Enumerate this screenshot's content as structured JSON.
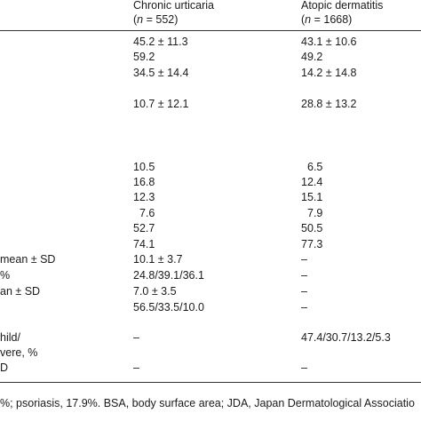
{
  "table": {
    "columns": [
      {
        "title": "Chronic urticaria",
        "n": [
          "(",
          "n",
          " = 552)"
        ]
      },
      {
        "title": "Atopic dermatitis",
        "n": [
          "(",
          "n",
          " = 1668)"
        ]
      }
    ],
    "rows": [
      {
        "cells": [
          "45.2 ± 11.3",
          "43.1 ± 10.6"
        ]
      },
      {
        "cells": [
          "59.2",
          "49.2"
        ]
      },
      {
        "cells": [
          "34.5 ± 14.4",
          "14.2 ± 14.8"
        ]
      },
      {
        "cells": [
          "10.7 ± 12.1",
          "28.8 ± 13.2"
        ]
      },
      {
        "cells": [
          "10.5",
          "6.5"
        ]
      },
      {
        "cells": [
          "16.8",
          "12.4"
        ]
      },
      {
        "cells": [
          "12.3",
          "15.1"
        ]
      },
      {
        "cells": [
          "7.6",
          "7.9"
        ]
      },
      {
        "cells": [
          "52.7",
          "50.5"
        ]
      },
      {
        "cells": [
          "74.1",
          "77.3"
        ]
      },
      {
        "label": "mean ± SD",
        "cells": [
          "10.1 ± 3.7",
          "–"
        ]
      },
      {
        "label": "%",
        "cells": [
          "24.8/39.1/36.1",
          "–"
        ]
      },
      {
        "label": "an ± SD",
        "cells": [
          "7.0 ± 3.5",
          "–"
        ]
      },
      {
        "cells": [
          "56.5/33.5/10.0",
          "–"
        ]
      },
      {
        "label": "hild/",
        "cells": [
          "–",
          "47.4/30.7/13.2/5.3"
        ]
      },
      {
        "label": "vere, %"
      },
      {
        "label": "D",
        "cells": [
          "–",
          "–"
        ]
      }
    ],
    "footnote": "%; psoriasis, 17.9%. BSA, body surface area; JDA, Japan Dermatological Associatio"
  }
}
